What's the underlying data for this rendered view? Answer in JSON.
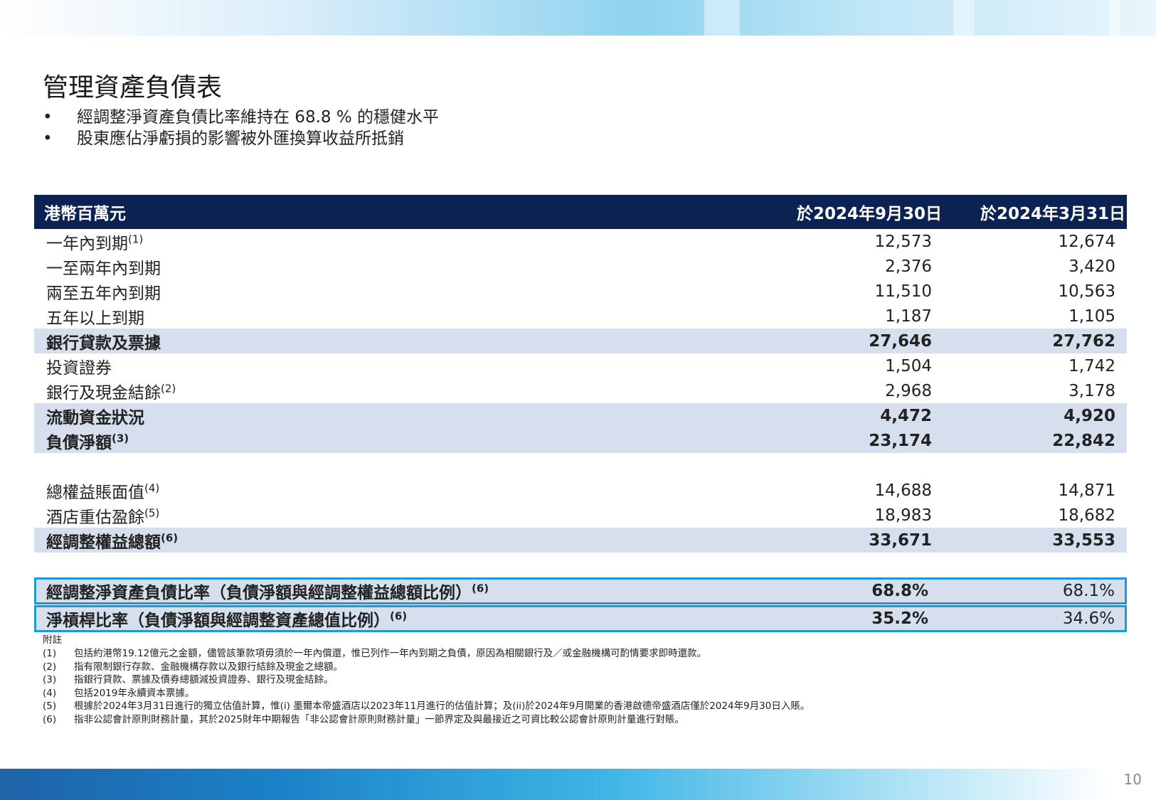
{
  "title": "管理資產負債表",
  "bullets": [
    "經調整淨資產負債比率維持在 68.8 % 的穩健水平",
    "股東應佔淨虧損的影響被外匯換算收益所抵銷"
  ],
  "table": {
    "header": {
      "label": "港幣百萬元",
      "col1": "於2024年9月30日",
      "col2": "於2024年3月31日"
    },
    "rows": [
      {
        "label": "一年內到期",
        "sup": "(1)",
        "v1": "12,573",
        "v2": "12,674"
      },
      {
        "label": "一至兩年內到期",
        "sup": "",
        "v1": "2,376",
        "v2": "3,420"
      },
      {
        "label": "兩至五年內到期",
        "sup": "",
        "v1": "11,510",
        "v2": "10,563"
      },
      {
        "label": "五年以上到期",
        "sup": "",
        "v1": "1,187",
        "v2": "1,105"
      },
      {
        "label": "銀行貸款及票據",
        "sup": "",
        "v1": "27,646",
        "v2": "27,762"
      },
      {
        "label": "投資證券",
        "sup": "",
        "v1": "1,504",
        "v2": "1,742"
      },
      {
        "label": "銀行及現金結餘",
        "sup": "(2)",
        "v1": "2,968",
        "v2": "3,178"
      },
      {
        "label": "流動資金狀況",
        "sup": "",
        "v1": "4,472",
        "v2": "4,920"
      },
      {
        "label": "負債淨額",
        "sup": "(3)",
        "v1": "23,174",
        "v2": "22,842"
      },
      {
        "label": "總權益賬面值",
        "sup": "(4)",
        "v1": "14,688",
        "v2": "14,871"
      },
      {
        "label": "酒店重估盈餘",
        "sup": "(5)",
        "v1": "18,983",
        "v2": "18,682"
      },
      {
        "label": "經調整權益總額",
        "sup": "(6)",
        "v1": "33,671",
        "v2": "33,553"
      }
    ],
    "ratios": [
      {
        "label": "經調整淨資產負債比率（負債淨額與經調整權益總額比例）",
        "sup": "(6)",
        "v1": "68.8%",
        "v2": "68.1%"
      },
      {
        "label": "淨槓桿比率（負債淨額與經調整資產總值比例）",
        "sup": "(6)",
        "v1": "35.2%",
        "v2": "34.6%"
      }
    ]
  },
  "notes": {
    "title": "附註",
    "items": [
      {
        "key": "(1)",
        "text": "包括約港幣19.12億元之金額，儘管該筆款項毋須於一年內償還，惟已列作一年內到期之負債，原因為相關銀行及／或金融機構可酌情要求即時還款。"
      },
      {
        "key": "(2)",
        "text": "指有限制銀行存款、金融機構存款以及銀行結餘及現金之總額。"
      },
      {
        "key": "(3)",
        "text": "指銀行貸款、票據及債券總額減投資證券、銀行及現金結餘。"
      },
      {
        "key": "(4)",
        "text": "包括2019年永續資本票據。"
      },
      {
        "key": "(5)",
        "text": "根據於2024年3月31日進行的獨立估值計算，惟(i) 墨爾本帝盛酒店以2023年11月進行的估值計算；及(ii)於2024年9月開業的香港啟德帝盛酒店僅於2024年9月30日入賬。"
      },
      {
        "key": "(6)",
        "text": "指非公認會計原則財務計量，其於2025財年中期報告「非公認會計原則財務計量」一節界定及與最接近之可資比較公認會計原則計量進行對賬。"
      }
    ]
  },
  "page_number": "10",
  "colors": {
    "header_bg": "#0b2253",
    "shade": "#d6dfee",
    "ratio_border": "#1b9ad6"
  }
}
